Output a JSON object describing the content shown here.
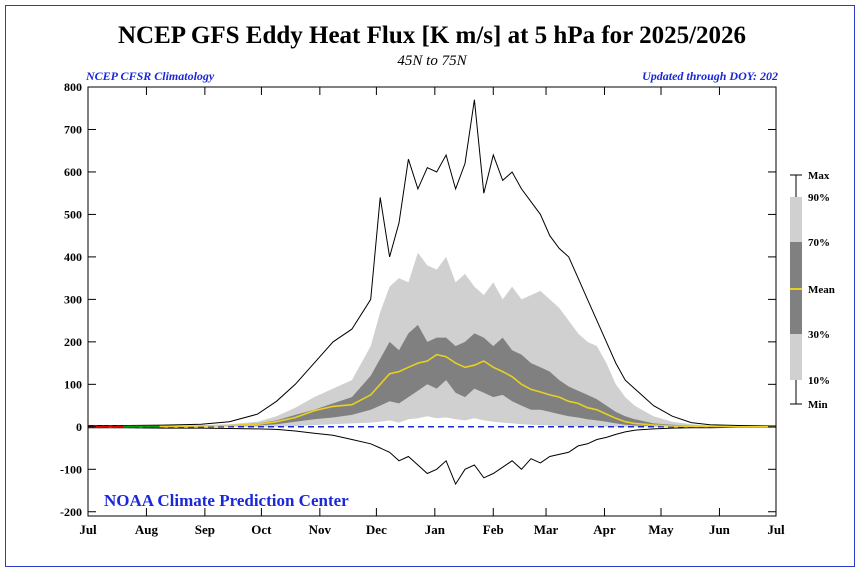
{
  "header": {
    "title": "NCEP GFS Eddy Heat Flux [K m/s] at 5 hPa for 2025/2026",
    "subtitle": "45N to 75N",
    "left_note": "NCEP CFSR Climatology",
    "right_note": "Updated through DOY: 202"
  },
  "credit": "NOAA Climate Prediction Center",
  "colors": {
    "frame": "#2a3cc8",
    "band_outer": "#d0d0d0",
    "band_inner": "#808080",
    "mean": "#e8d020",
    "max_min": "#000000",
    "current_red": "#e00000",
    "current_green": "#00a000",
    "zero_line": "#1a28d8",
    "credit": "#1a28d8"
  },
  "legend": {
    "items": [
      {
        "key": "max",
        "label": "Max"
      },
      {
        "key": "p90",
        "label": "90%"
      },
      {
        "key": "p70",
        "label": "70%"
      },
      {
        "key": "mean",
        "label": "Mean"
      },
      {
        "key": "p30",
        "label": "30%"
      },
      {
        "key": "p10",
        "label": "10%"
      },
      {
        "key": "min",
        "label": "Min"
      }
    ]
  },
  "chart_data": {
    "type": "area",
    "x_unit": "day of year from Jul 1",
    "xlim": [
      0,
      365
    ],
    "ylim": [
      -210,
      800
    ],
    "y_ticks": [
      -200,
      -100,
      0,
      100,
      200,
      300,
      400,
      500,
      600,
      700,
      800
    ],
    "x_ticks": [
      {
        "x": 0,
        "label": "Jul"
      },
      {
        "x": 31,
        "label": "Aug"
      },
      {
        "x": 62,
        "label": "Sep"
      },
      {
        "x": 92,
        "label": "Oct"
      },
      {
        "x": 123,
        "label": "Nov"
      },
      {
        "x": 153,
        "label": "Dec"
      },
      {
        "x": 184,
        "label": "Jan"
      },
      {
        "x": 215,
        "label": "Feb"
      },
      {
        "x": 243,
        "label": "Mar"
      },
      {
        "x": 274,
        "label": "Apr"
      },
      {
        "x": 304,
        "label": "May"
      },
      {
        "x": 335,
        "label": "Jun"
      },
      {
        "x": 365,
        "label": "Jul"
      }
    ],
    "x": [
      0,
      20,
      40,
      60,
      75,
      90,
      100,
      110,
      120,
      130,
      140,
      150,
      155,
      160,
      165,
      170,
      175,
      180,
      185,
      190,
      195,
      200,
      205,
      210,
      215,
      220,
      225,
      230,
      235,
      240,
      245,
      250,
      255,
      260,
      265,
      270,
      275,
      280,
      285,
      290,
      300,
      310,
      320,
      330,
      345,
      365
    ],
    "series": [
      {
        "key": "max",
        "values": [
          3,
          3,
          4,
          6,
          12,
          30,
          60,
          100,
          150,
          200,
          230,
          300,
          540,
          400,
          480,
          630,
          560,
          610,
          600,
          640,
          560,
          620,
          770,
          550,
          640,
          580,
          600,
          560,
          530,
          500,
          450,
          420,
          400,
          350,
          300,
          250,
          200,
          150,
          110,
          90,
          50,
          25,
          10,
          5,
          3,
          2
        ]
      },
      {
        "key": "p90",
        "values": [
          2,
          2,
          3,
          4,
          6,
          12,
          25,
          45,
          70,
          90,
          110,
          190,
          270,
          330,
          350,
          340,
          410,
          380,
          370,
          400,
          340,
          360,
          330,
          310,
          340,
          300,
          330,
          300,
          310,
          320,
          300,
          280,
          250,
          220,
          200,
          190,
          150,
          100,
          70,
          50,
          25,
          12,
          6,
          3,
          2,
          2
        ]
      },
      {
        "key": "p70",
        "values": [
          1,
          1,
          2,
          3,
          4,
          8,
          15,
          28,
          40,
          55,
          70,
          120,
          160,
          200,
          180,
          220,
          240,
          200,
          210,
          210,
          190,
          200,
          220,
          210,
          190,
          210,
          180,
          170,
          150,
          140,
          130,
          110,
          95,
          85,
          75,
          65,
          50,
          35,
          25,
          18,
          8,
          5,
          3,
          2,
          1,
          1
        ]
      },
      {
        "key": "mean",
        "values": [
          0,
          0,
          1,
          2,
          3,
          6,
          12,
          22,
          38,
          48,
          52,
          75,
          100,
          125,
          130,
          140,
          150,
          155,
          170,
          165,
          150,
          140,
          145,
          155,
          140,
          130,
          118,
          100,
          88,
          82,
          75,
          70,
          60,
          55,
          45,
          40,
          30,
          20,
          12,
          8,
          4,
          2,
          1,
          1,
          0,
          0
        ]
      },
      {
        "key": "p30",
        "values": [
          0,
          0,
          0,
          1,
          2,
          3,
          6,
          12,
          18,
          22,
          28,
          40,
          50,
          60,
          55,
          70,
          85,
          100,
          90,
          110,
          80,
          70,
          90,
          80,
          70,
          75,
          60,
          50,
          40,
          40,
          35,
          30,
          25,
          22,
          18,
          15,
          12,
          8,
          5,
          3,
          2,
          1,
          0,
          0,
          0,
          0
        ]
      },
      {
        "key": "p10",
        "values": [
          0,
          0,
          0,
          0,
          0,
          0,
          0,
          2,
          4,
          6,
          8,
          10,
          12,
          15,
          10,
          18,
          20,
          25,
          20,
          22,
          18,
          15,
          20,
          15,
          12,
          10,
          8,
          6,
          5,
          4,
          3,
          2,
          2,
          1,
          1,
          0,
          0,
          0,
          0,
          0,
          0,
          0,
          0,
          0,
          0,
          0
        ]
      },
      {
        "key": "min",
        "values": [
          -2,
          -2,
          -3,
          -3,
          -4,
          -5,
          -6,
          -10,
          -15,
          -20,
          -30,
          -40,
          -50,
          -60,
          -80,
          -70,
          -90,
          -110,
          -100,
          -80,
          -135,
          -100,
          -90,
          -120,
          -110,
          -95,
          -80,
          -100,
          -75,
          -85,
          -70,
          -65,
          -60,
          -45,
          -40,
          -30,
          -25,
          -18,
          -12,
          -8,
          -5,
          -3,
          -2,
          -2,
          -1,
          -1
        ]
      }
    ],
    "current": {
      "name": "2025/2026",
      "x": [
        0,
        2,
        4,
        6,
        8,
        10,
        12,
        14,
        16,
        18,
        19,
        20,
        22,
        24,
        26,
        28,
        30,
        32,
        34,
        36,
        38
      ],
      "values": [
        1,
        0,
        2,
        -1,
        1,
        0,
        2,
        -1,
        1,
        0,
        1,
        0,
        1,
        0,
        1,
        -1,
        1,
        0,
        1,
        0,
        1
      ],
      "red_until": 19
    }
  }
}
